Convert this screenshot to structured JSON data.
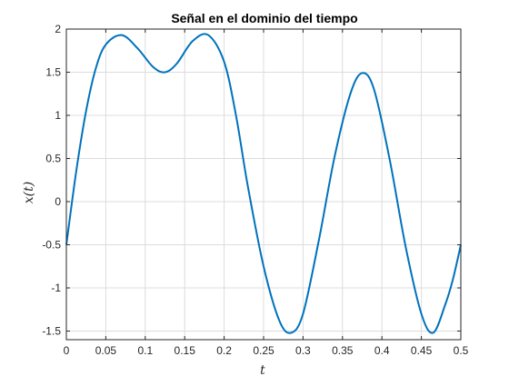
{
  "chart_data": {
    "type": "line",
    "title": "Señal en el dominio del tiempo",
    "xlabel": "t",
    "ylabel": "x(t)",
    "xlim": [
      0,
      0.5
    ],
    "ylim": [
      -1.6,
      2
    ],
    "grid": true,
    "xticks": [
      0,
      0.05,
      0.1,
      0.15,
      0.2,
      0.25,
      0.3,
      0.35,
      0.4,
      0.45,
      0.5
    ],
    "xtick_labels": [
      "0",
      "0.05",
      "0.1",
      "0.15",
      "0.2",
      "0.25",
      "0.3",
      "0.35",
      "0.4",
      "0.45",
      "0.5"
    ],
    "yticks": [
      -1.5,
      -1,
      -0.5,
      0,
      0.5,
      1,
      1.5,
      2
    ],
    "ytick_labels": [
      "-1.5",
      "-1",
      "-0.5",
      "0",
      "0.5",
      "1",
      "1.5",
      "2"
    ],
    "series": [
      {
        "color": "#0072bd",
        "x": [
          0,
          0.0125,
          0.025,
          0.0375,
          0.05,
          0.07,
          0.09,
          0.11,
          0.125,
          0.14,
          0.16,
          0.18,
          0.2,
          0.215,
          0.23,
          0.25,
          0.27,
          0.285,
          0.3,
          0.32,
          0.34,
          0.36,
          0.375,
          0.39,
          0.41,
          0.43,
          0.45,
          0.465,
          0.48,
          0.49,
          0.5
        ],
        "y": [
          -0.5,
          0.35,
          1.05,
          1.55,
          1.82,
          1.93,
          1.78,
          1.56,
          1.5,
          1.6,
          1.86,
          1.93,
          1.62,
          1.0,
          0.18,
          -0.75,
          -1.38,
          -1.52,
          -1.3,
          -0.45,
          0.52,
          1.25,
          1.49,
          1.3,
          0.48,
          -0.52,
          -1.3,
          -1.52,
          -1.2,
          -0.9,
          -0.5
        ]
      }
    ]
  }
}
